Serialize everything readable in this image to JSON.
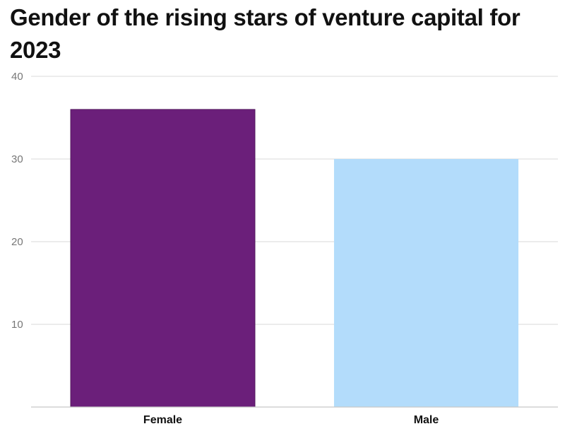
{
  "chart_data": {
    "type": "bar",
    "title": "Gender of the rising stars of venture capital for 2023",
    "xlabel": "",
    "ylabel": "",
    "categories": [
      "Female",
      "Male"
    ],
    "values": [
      36,
      30
    ],
    "bar_colors": [
      "#6b1f7a",
      "#b3dcfb"
    ],
    "ylim": [
      0,
      40
    ],
    "yticks": [
      10,
      20,
      30,
      40
    ],
    "grid": true,
    "legend": "none"
  }
}
